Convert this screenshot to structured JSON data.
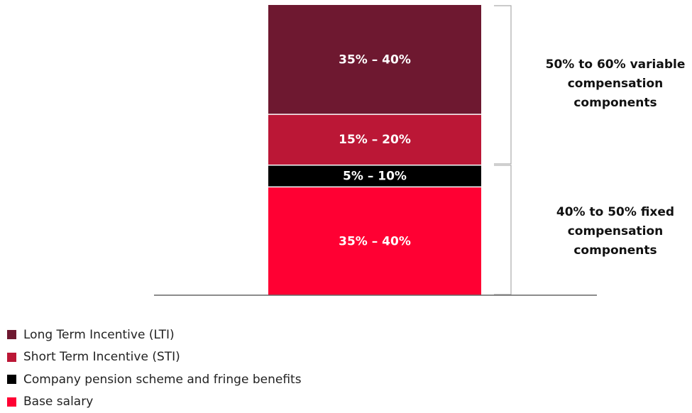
{
  "chart_data": {
    "type": "bar",
    "stacked": true,
    "categories": [
      ""
    ],
    "series": [
      {
        "name": "Base salary",
        "range_label": "35% – 40%",
        "value": 37.5,
        "color": "#ff0033"
      },
      {
        "name": "Company pension scheme and fringe benefits",
        "range_label": "5% – 10%",
        "value": 7.5,
        "color": "#000000"
      },
      {
        "name": "Short Term Incentive (STI)",
        "range_label": "15% – 20%",
        "value": 17.5,
        "color": "#bb1736"
      },
      {
        "name": "Long Term Incentive (LTI)",
        "range_label": "35% – 40%",
        "value": 37.5,
        "color": "#6e1830"
      }
    ],
    "ylim": [
      0,
      100
    ],
    "grid": false,
    "legend_position": "bottom-left",
    "groups": [
      {
        "label": "50% to 60% variable compensation components",
        "series": [
          "Short Term Incentive (STI)",
          "Long Term Incentive (LTI)"
        ]
      },
      {
        "label": "40% to 50% fixed compensation components",
        "series": [
          "Base salary",
          "Company pension scheme and fringe benefits"
        ]
      }
    ],
    "legend": [
      {
        "label": "Long Term Incentive (LTI)",
        "color": "#6e1830"
      },
      {
        "label": "Short Term Incentive (STI)",
        "color": "#bb1736"
      },
      {
        "label": "Company pension scheme and fringe benefits",
        "color": "#000000"
      },
      {
        "label": "Base salary",
        "color": "#ff0033"
      }
    ]
  }
}
